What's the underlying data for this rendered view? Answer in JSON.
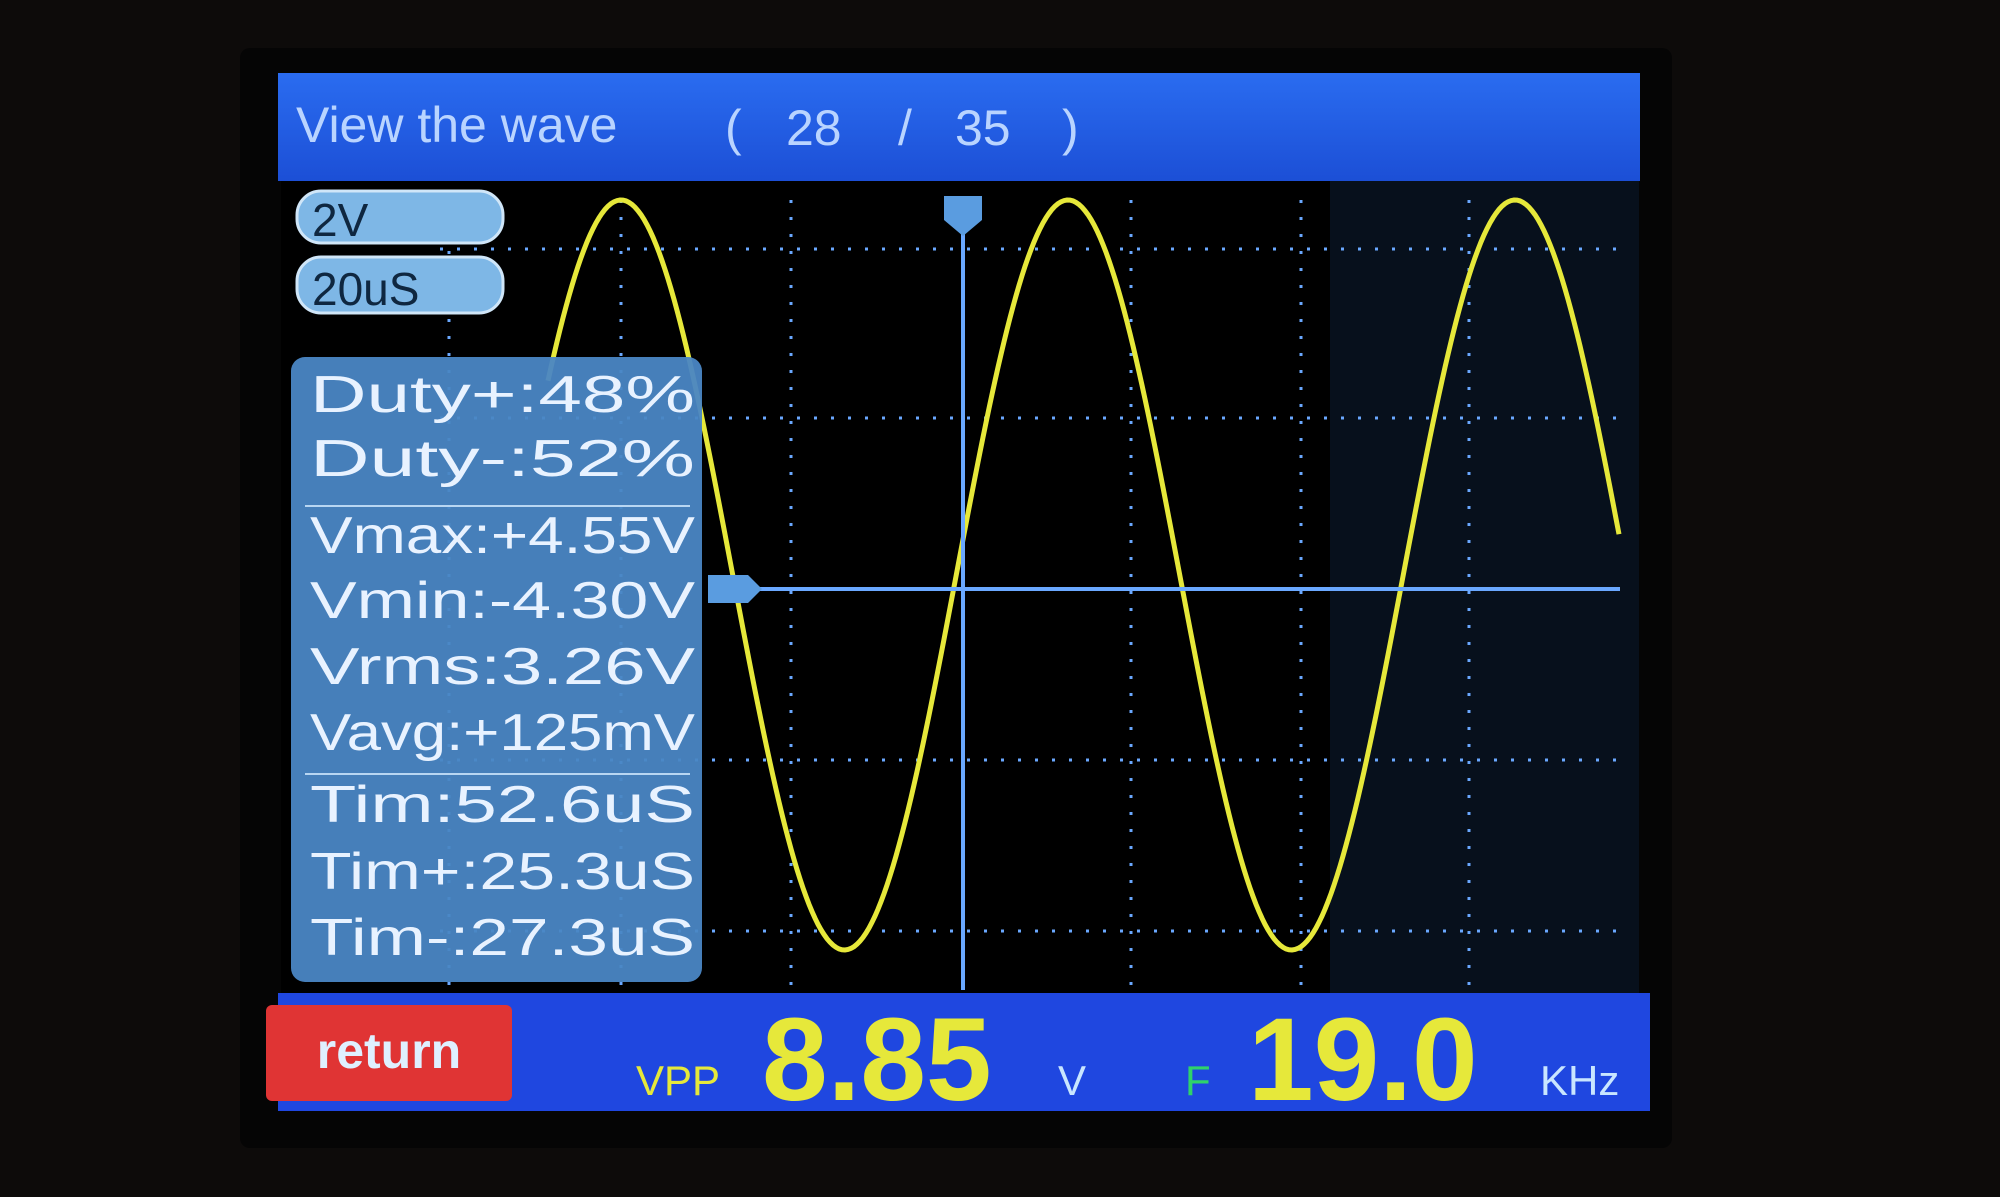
{
  "header": {
    "title": "View the wave",
    "current": "28",
    "separator": "/",
    "total": "35",
    "open_paren": "(",
    "close_paren": ")"
  },
  "scales": {
    "volts_per_div": "2V",
    "time_per_div": "20uS"
  },
  "measurements": [
    {
      "label": "Duty+",
      "value": "48%"
    },
    {
      "label": "Duty-",
      "value": "52%"
    },
    {
      "label": "Vmax",
      "value": "+4.55V"
    },
    {
      "label": "Vmin",
      "value": "-4.30V"
    },
    {
      "label": "Vrms",
      "value": "3.26V"
    },
    {
      "label": "Vavg",
      "value": "+125mV"
    },
    {
      "label": "Tim",
      "value": "52.6uS"
    },
    {
      "label": "Tim+",
      "value": "25.3uS"
    },
    {
      "label": "Tim-",
      "value": "27.3uS"
    }
  ],
  "footer": {
    "return_label": "return",
    "vpp_label": "VPP",
    "vpp_value": "8.85",
    "vpp_unit": "V",
    "freq_label": "F",
    "freq_value": "19.0",
    "freq_unit": "KHz"
  },
  "waveform": {
    "shape": "sine",
    "color": "#e6e83a",
    "cycles_visible": 2.4
  },
  "colors": {
    "title_bar": "#1f5fe8",
    "panel": "#4a86c4",
    "return_button": "#e03434",
    "readout": "#e6e83a",
    "grid": "#6aa8ff"
  }
}
